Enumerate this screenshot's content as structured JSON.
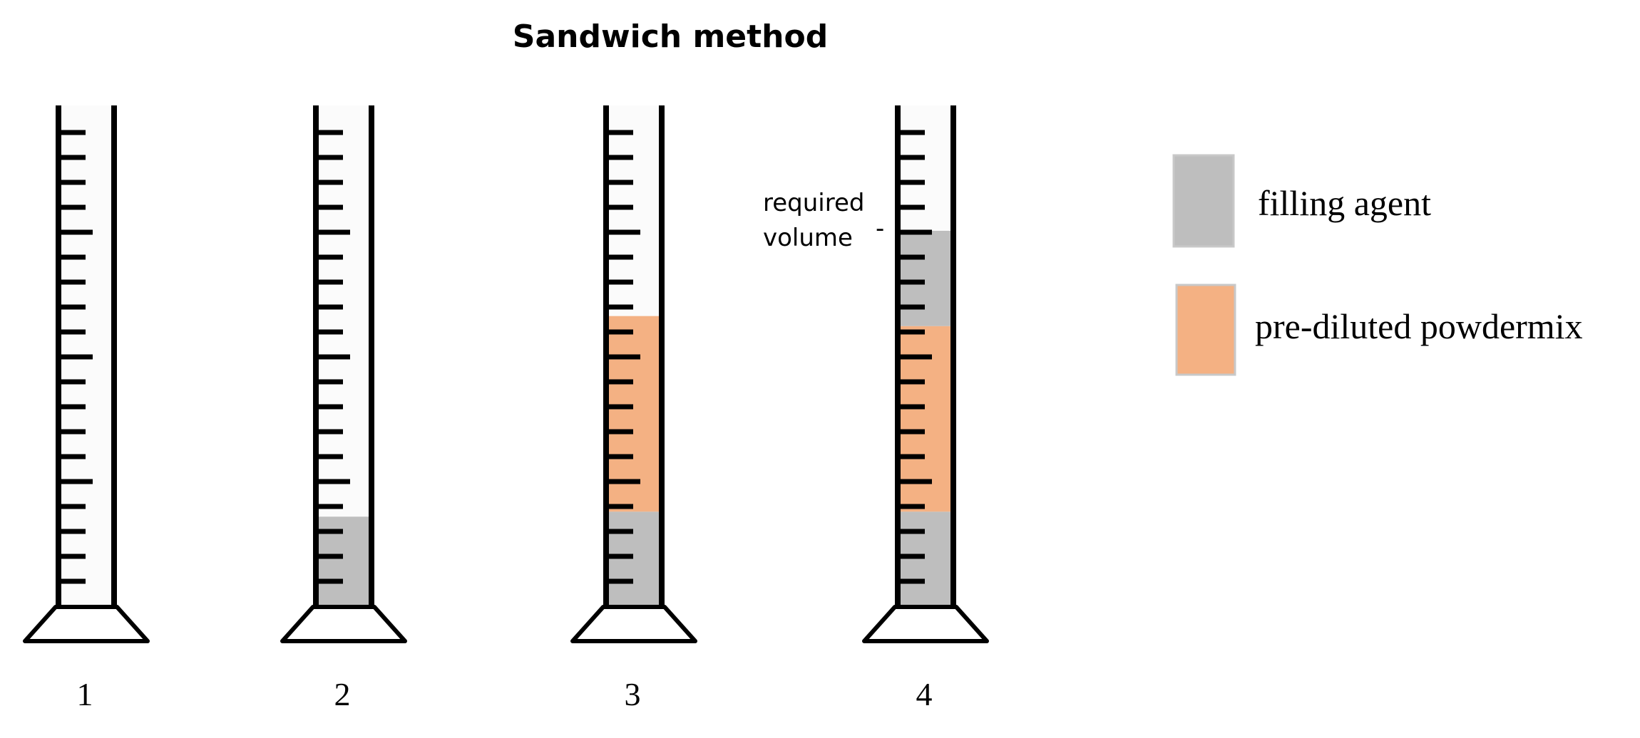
{
  "title": "Sandwich method",
  "colors": {
    "filling_agent": "#bebebe",
    "powdermix": "#f4b183",
    "legend_border": "#c8c8c8",
    "outline": "#000000"
  },
  "cylinders": [
    {
      "label": "1",
      "layers": []
    },
    {
      "label": "2",
      "layers": [
        {
          "material": "filling_agent",
          "from": 0,
          "to": 0.18
        }
      ]
    },
    {
      "label": "3",
      "layers": [
        {
          "material": "filling_agent",
          "from": 0,
          "to": 0.19
        },
        {
          "material": "powdermix",
          "from": 0.19,
          "to": 0.58
        }
      ]
    },
    {
      "label": "4",
      "layers": [
        {
          "material": "filling_agent",
          "from": 0,
          "to": 0.19
        },
        {
          "material": "powdermix",
          "from": 0.19,
          "to": 0.56
        },
        {
          "material": "filling_agent",
          "from": 0.56,
          "to": 0.75
        }
      ]
    }
  ],
  "annotation": {
    "line1": "required",
    "line2": "volume",
    "mark": "-"
  },
  "legend": [
    {
      "key": "filling_agent",
      "label": "filling agent"
    },
    {
      "key": "powdermix",
      "label": "pre-diluted powdermix"
    }
  ]
}
